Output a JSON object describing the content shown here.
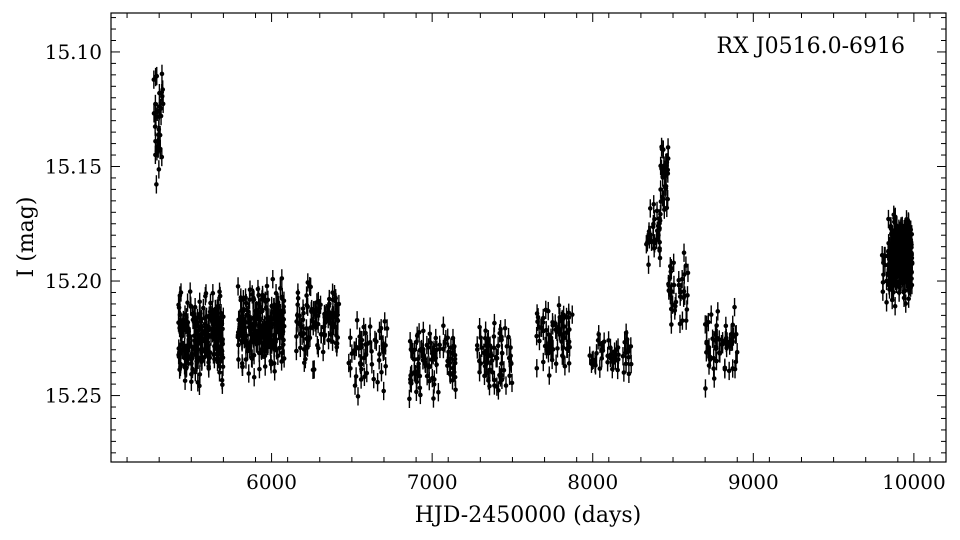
{
  "chart_data": {
    "type": "scatter",
    "annotation": "RX J0516.0-6916",
    "xlabel": "HJD-2450000 (days)",
    "ylabel": "I (mag)",
    "xlim": [
      5000,
      10200
    ],
    "ylim": [
      15.083,
      15.279
    ],
    "y_inverted": true,
    "grid": false,
    "x_ticks": [
      6000,
      7000,
      8000,
      9000,
      10000
    ],
    "x_tick_labels": [
      "6000",
      "7000",
      "8000",
      "9000",
      "10000"
    ],
    "y_ticks": [
      15.1,
      15.15,
      15.2,
      15.25
    ],
    "y_tick_labels": [
      "15.10",
      "15.15",
      "15.20",
      "15.25"
    ],
    "marker_color": "#000000",
    "error_bar_mag": 0.004,
    "clusters": [
      {
        "x_range": [
          5260,
          5330
        ],
        "y_mean": 15.13,
        "y_spread": 0.022,
        "count": 35
      },
      {
        "x_range": [
          5420,
          5700
        ],
        "y_mean": 15.225,
        "y_spread": 0.016,
        "count": 230
      },
      {
        "x_range": [
          5790,
          6080
        ],
        "y_mean": 15.22,
        "y_spread": 0.015,
        "count": 250
      },
      {
        "x_range": [
          6150,
          6420
        ],
        "y_mean": 15.218,
        "y_spread": 0.015,
        "count": 110
      },
      {
        "x_range": [
          6480,
          6720
        ],
        "y_mean": 15.232,
        "y_spread": 0.015,
        "count": 55
      },
      {
        "x_range": [
          6850,
          7150
        ],
        "y_mean": 15.235,
        "y_spread": 0.012,
        "count": 90
      },
      {
        "x_range": [
          7280,
          7500
        ],
        "y_mean": 15.234,
        "y_spread": 0.012,
        "count": 65
      },
      {
        "x_range": [
          7650,
          7880
        ],
        "y_mean": 15.225,
        "y_spread": 0.013,
        "count": 70
      },
      {
        "x_range": [
          7980,
          8240
        ],
        "y_mean": 15.232,
        "y_spread": 0.01,
        "count": 45
      },
      {
        "x_range": [
          8330,
          8420
        ],
        "y_mean": 15.18,
        "y_spread": 0.012,
        "count": 30
      },
      {
        "x_range": [
          8420,
          8470
        ],
        "y_mean": 15.155,
        "y_spread": 0.018,
        "count": 30
      },
      {
        "x_range": [
          8470,
          8600
        ],
        "y_mean": 15.205,
        "y_spread": 0.015,
        "count": 35
      },
      {
        "x_range": [
          8700,
          8900
        ],
        "y_mean": 15.228,
        "y_spread": 0.015,
        "count": 55
      },
      {
        "x_range": [
          9800,
          9840
        ],
        "y_mean": 15.2,
        "y_spread": 0.013,
        "count": 10
      },
      {
        "x_range": [
          9840,
          9990
        ],
        "y_mean": 15.19,
        "y_spread": 0.013,
        "count": 380
      }
    ]
  }
}
